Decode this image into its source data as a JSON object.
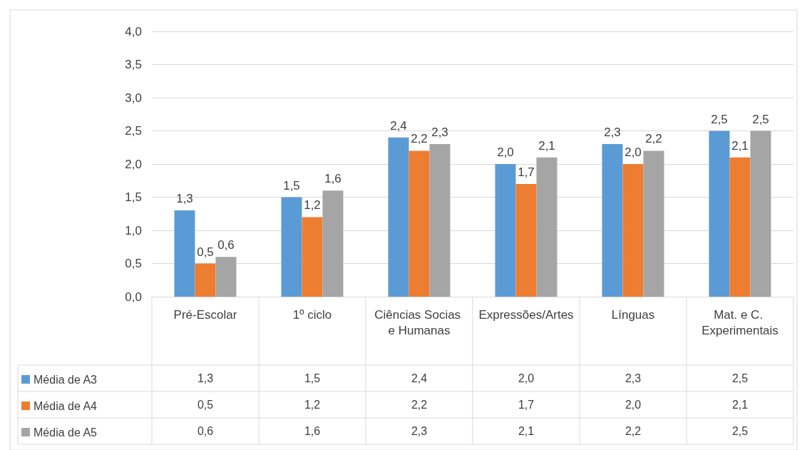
{
  "chart_data": {
    "type": "bar",
    "categories": [
      "Pré-Escolar",
      "1º ciclo",
      "Ciências Socias e Humanas",
      "Expressões/Artes",
      "Línguas",
      "Mat. e C. Experimentais"
    ],
    "series": [
      {
        "name": "Média de A3",
        "color": "#5b9bd5",
        "values": [
          1.3,
          1.5,
          2.4,
          2.0,
          2.3,
          2.5
        ],
        "value_labels": [
          "1,3",
          "1,5",
          "2,4",
          "2,0",
          "2,3",
          "2,5"
        ]
      },
      {
        "name": "Média de A4",
        "color": "#ed7d31",
        "values": [
          0.5,
          1.2,
          2.2,
          1.7,
          2.0,
          2.1
        ],
        "value_labels": [
          "0,5",
          "1,2",
          "2,2",
          "1,7",
          "2,0",
          "2,1"
        ]
      },
      {
        "name": "Média de A5",
        "color": "#a5a5a5",
        "values": [
          0.6,
          1.6,
          2.3,
          2.1,
          2.2,
          2.5
        ],
        "value_labels": [
          "0,6",
          "1,6",
          "2,3",
          "2,1",
          "2,2",
          "2,5"
        ]
      }
    ],
    "ylim": [
      0,
      4
    ],
    "yticks": [
      {
        "value": 0,
        "label": "0,0"
      },
      {
        "value": 0.5,
        "label": "0,5"
      },
      {
        "value": 1,
        "label": "1,0"
      },
      {
        "value": 1.5,
        "label": "1,5"
      },
      {
        "value": 2,
        "label": "2,0"
      },
      {
        "value": 2.5,
        "label": "2,5"
      },
      {
        "value": 3,
        "label": "3,0"
      },
      {
        "value": 3.5,
        "label": "3,5"
      },
      {
        "value": 4,
        "label": "4,0"
      }
    ],
    "grid": "y",
    "legend": "bottom left"
  }
}
